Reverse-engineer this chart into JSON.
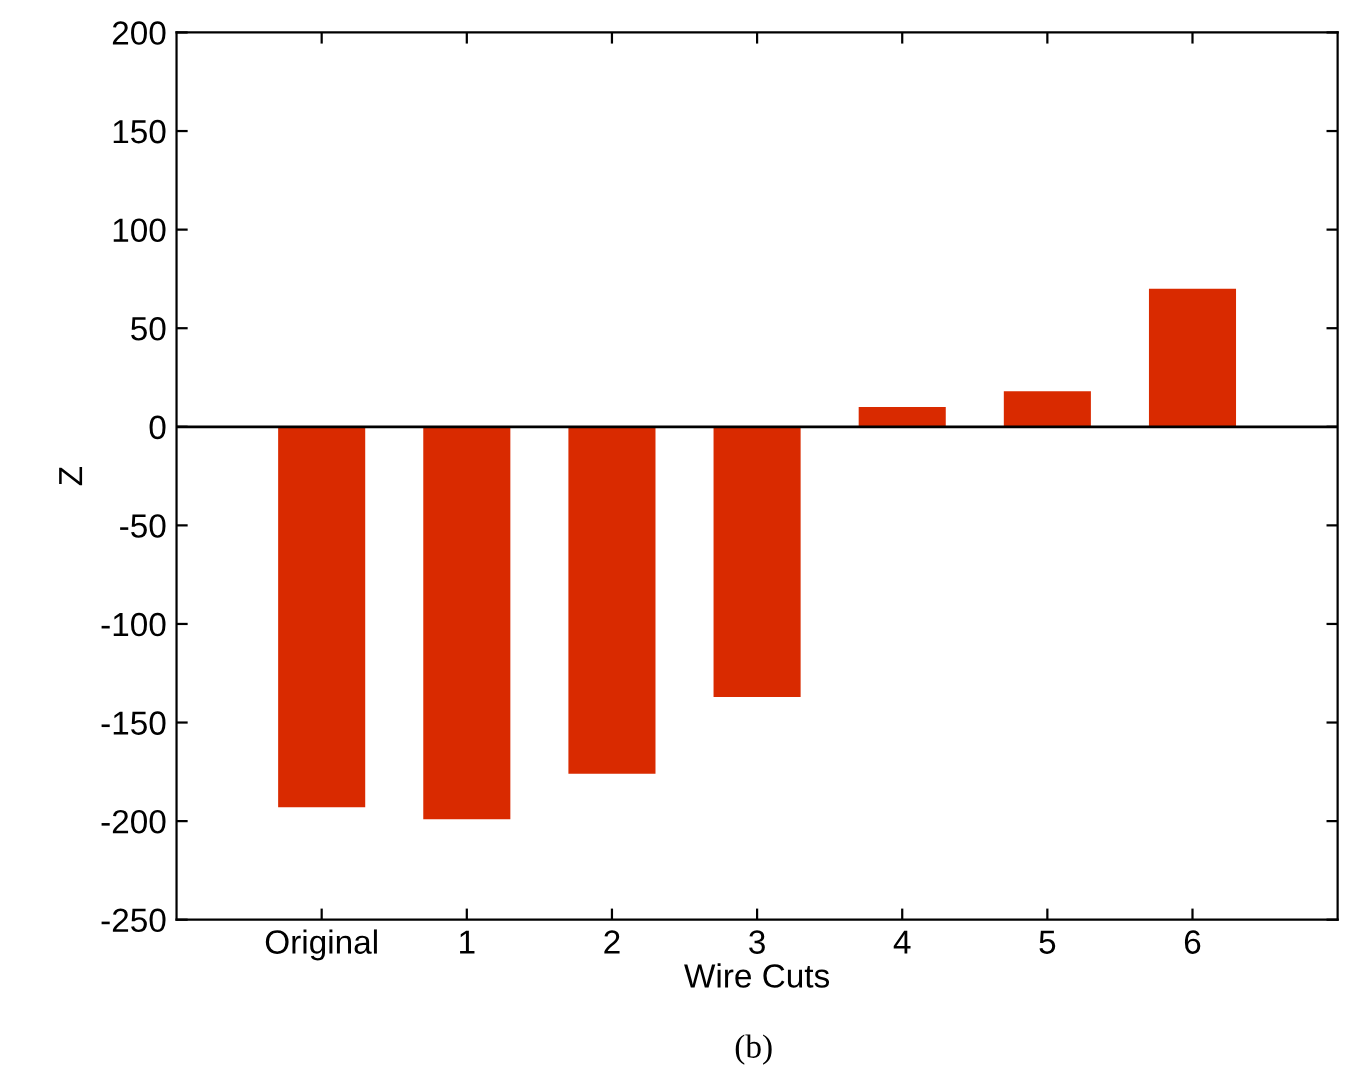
{
  "chart_data": {
    "type": "bar",
    "xlabel": "Wire Cuts",
    "ylabel": "Z",
    "categories": [
      "Original",
      "1",
      "2",
      "3",
      "4",
      "5",
      "6"
    ],
    "values": [
      -193,
      -199,
      -176,
      -137,
      10,
      18,
      70
    ],
    "color": "#d92a00",
    "ylim": [
      -250,
      200
    ],
    "yticks": [
      -250,
      -200,
      -150,
      -100,
      -50,
      0,
      50,
      100,
      150,
      200
    ],
    "ref_lines": [
      {
        "axis": "y",
        "value": 0,
        "label": null,
        "color": "#000000"
      }
    ],
    "annotations": [
      "(b)"
    ],
    "grid": false,
    "legend": false
  }
}
